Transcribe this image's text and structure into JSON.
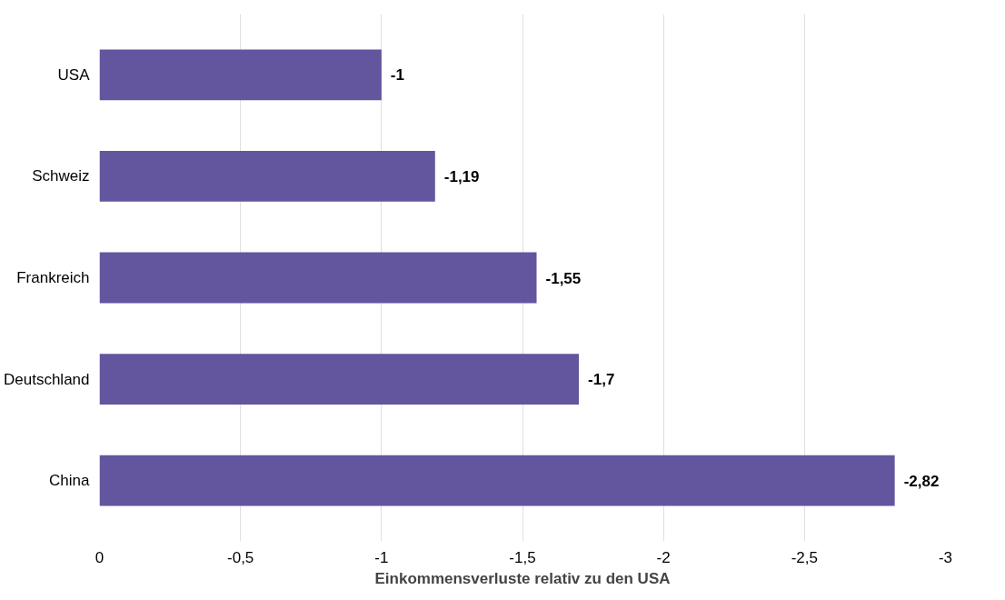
{
  "chart_data": {
    "type": "bar",
    "orientation": "horizontal",
    "xlabel": "Einkommensverluste relativ zu den USA",
    "categories": [
      "USA",
      "Schweiz",
      "Frankreich",
      "Deutschland",
      "China"
    ],
    "values": [
      -1,
      -1.19,
      -1.55,
      -1.7,
      -2.82
    ],
    "value_labels": [
      "-1",
      "-1,19",
      "-1,55",
      "-1,7",
      "-2,82"
    ],
    "color": "#63559e",
    "xlim": [
      0,
      -3
    ],
    "xticks": [
      0,
      {
        "value": -0.5,
        "label": "-0,5"
      },
      -1,
      {
        "value": -1.5,
        "label": "-1,5"
      },
      -2,
      {
        "value": -2.5,
        "label": "-2,5"
      },
      -3
    ],
    "grid": "x"
  }
}
